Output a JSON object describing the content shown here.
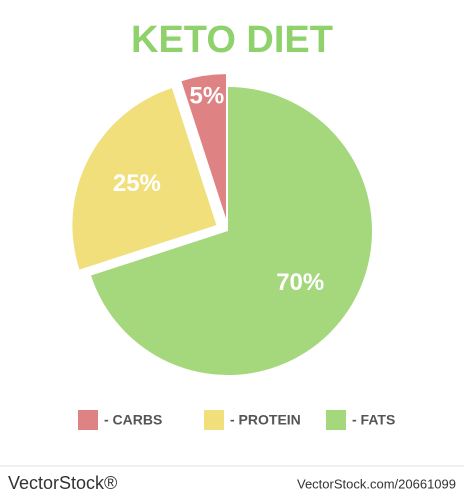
{
  "chart_data": {
    "type": "pie",
    "title": "KETO DIET",
    "categories": [
      "- CARBS",
      "- PROTEIN",
      "- FATS"
    ],
    "values": [
      5,
      25,
      70
    ],
    "value_labels": [
      "5%",
      "25%",
      "70%"
    ],
    "colors": [
      "#de8283",
      "#f1df7c",
      "#a5d77c"
    ],
    "exploded": [
      true,
      true,
      false
    ]
  },
  "footer": {
    "brand": "VectorStock®",
    "url": "VectorStock.com/20661099"
  }
}
